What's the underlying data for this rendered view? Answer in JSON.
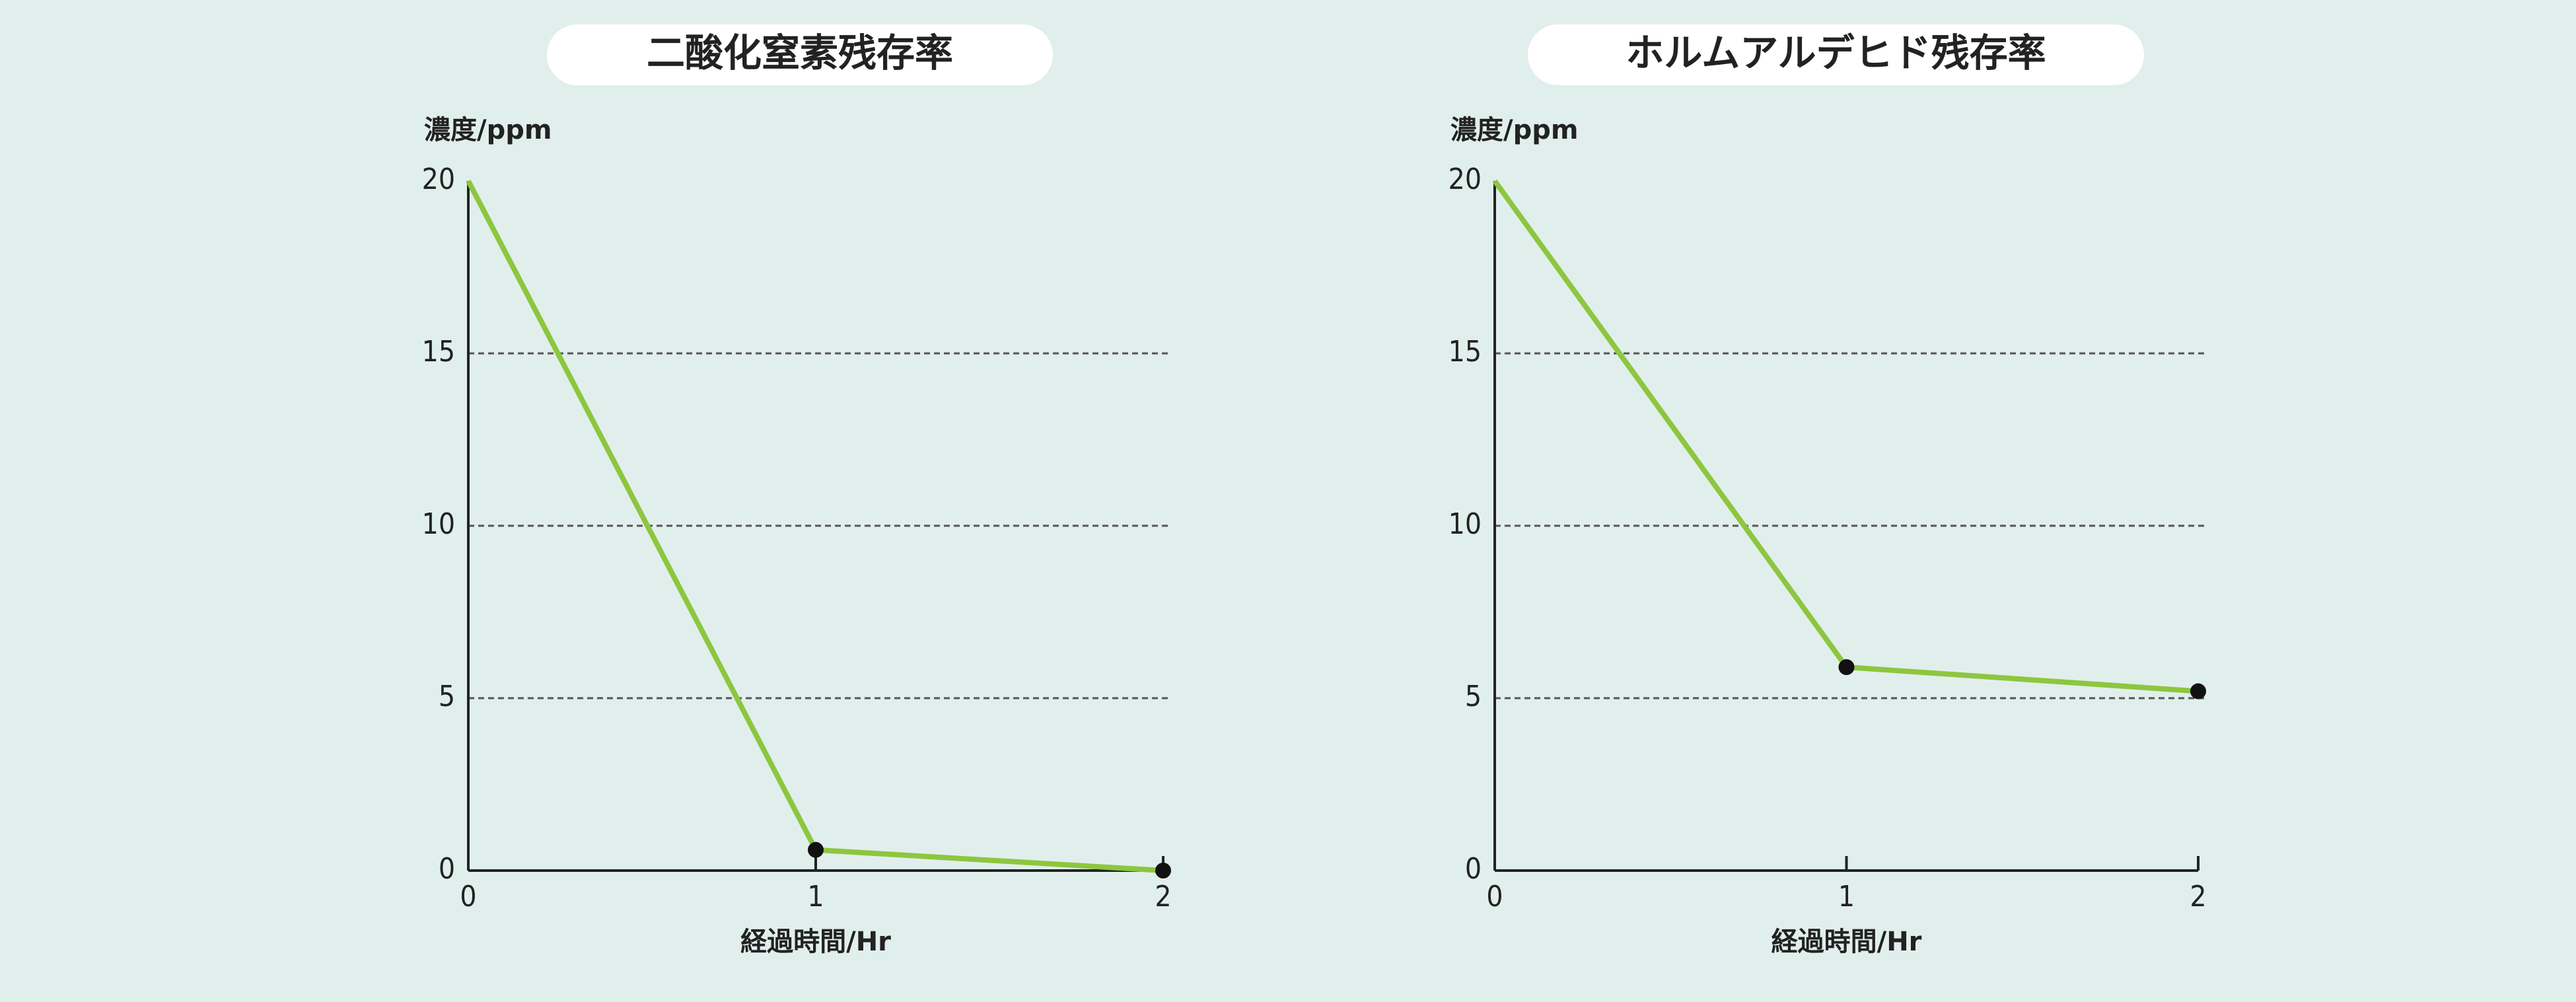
{
  "chart_data": [
    {
      "type": "line",
      "title": "二酸化窒素残存率",
      "y_label": "濃度/ppm",
      "x_label": "経過時間/Hr",
      "x": [
        0,
        1,
        2
      ],
      "xlim": [
        0,
        2
      ],
      "xticks": [
        0,
        1,
        2
      ],
      "ylim": [
        0,
        20
      ],
      "yticks": [
        0,
        5,
        10,
        15,
        20
      ],
      "grid": true,
      "series": [
        {
          "color": "#8dc63f",
          "values": [
            20,
            0.6,
            0
          ]
        }
      ]
    },
    {
      "type": "line",
      "title": "ホルムアルデヒド残存率",
      "y_label": "濃度/ppm",
      "x_label": "経過時間/Hr",
      "x": [
        0,
        1,
        2
      ],
      "xlim": [
        0,
        2
      ],
      "xticks": [
        0,
        1,
        2
      ],
      "ylim": [
        0,
        20
      ],
      "yticks": [
        0,
        5,
        10,
        15,
        20
      ],
      "grid": true,
      "series": [
        {
          "color": "#8dc63f",
          "values": [
            20,
            5.9,
            5.2
          ]
        }
      ]
    }
  ]
}
